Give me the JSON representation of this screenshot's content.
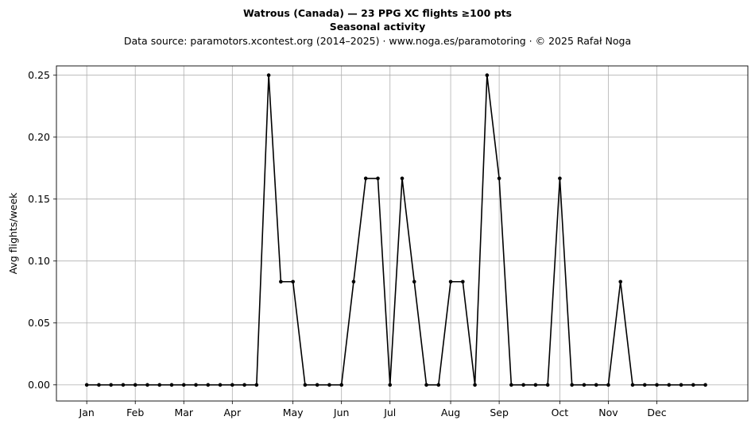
{
  "chart_data": {
    "type": "line",
    "title_lines": [
      "Watrous (Canada)  —  23 PPG XC flights ≥100 pts",
      "Seasonal activity"
    ],
    "subtitle": "Data source: paramotors.xcontest.org (2014–2025)  ·  www.noga.es/paramotoring  ·  © 2025 Rafał Noga",
    "xlabel": "",
    "ylabel": "Avg flights/week",
    "ylim": [
      -0.013,
      0.2575
    ],
    "xlim": [
      -2.5,
      54.5
    ],
    "grid": true,
    "line_color": "#000000",
    "month_ticks": [
      {
        "label": "Jan",
        "x": 0
      },
      {
        "label": "Feb",
        "x": 4
      },
      {
        "label": "Mar",
        "x": 8
      },
      {
        "label": "Apr",
        "x": 12
      },
      {
        "label": "May",
        "x": 17
      },
      {
        "label": "Jun",
        "x": 21
      },
      {
        "label": "Jul",
        "x": 25
      },
      {
        "label": "Aug",
        "x": 30
      },
      {
        "label": "Sep",
        "x": 34
      },
      {
        "label": "Oct",
        "x": 39
      },
      {
        "label": "Nov",
        "x": 43
      },
      {
        "label": "Dec",
        "x": 47
      }
    ],
    "y_ticks": [
      "0.00",
      "0.05",
      "0.10",
      "0.15",
      "0.20",
      "0.25"
    ],
    "series": [
      {
        "x": [
          0,
          1,
          2,
          3,
          4,
          5,
          6,
          7,
          8,
          9,
          10,
          11,
          12,
          13,
          14,
          15,
          16,
          17,
          18,
          19,
          20,
          21,
          22,
          23,
          24,
          25,
          26,
          27,
          28,
          29,
          30,
          31,
          32,
          33,
          34,
          35,
          36,
          37,
          38,
          39,
          40,
          41,
          42,
          43,
          44,
          45,
          46,
          47,
          48,
          49,
          50,
          51
        ],
        "values": [
          0,
          0,
          0,
          0,
          0,
          0,
          0,
          0,
          0,
          0,
          0,
          0,
          0,
          0,
          0,
          0.25,
          0.0833,
          0.0833,
          0,
          0,
          0,
          0,
          0.0833,
          0.1667,
          0.1667,
          0,
          0.1667,
          0.0833,
          0,
          0,
          0.0833,
          0.0833,
          0,
          0.25,
          0.1667,
          0,
          0,
          0,
          0,
          0.1667,
          0,
          0,
          0,
          0,
          0.0833,
          0,
          0,
          0,
          0,
          0,
          0,
          0
        ]
      }
    ]
  }
}
